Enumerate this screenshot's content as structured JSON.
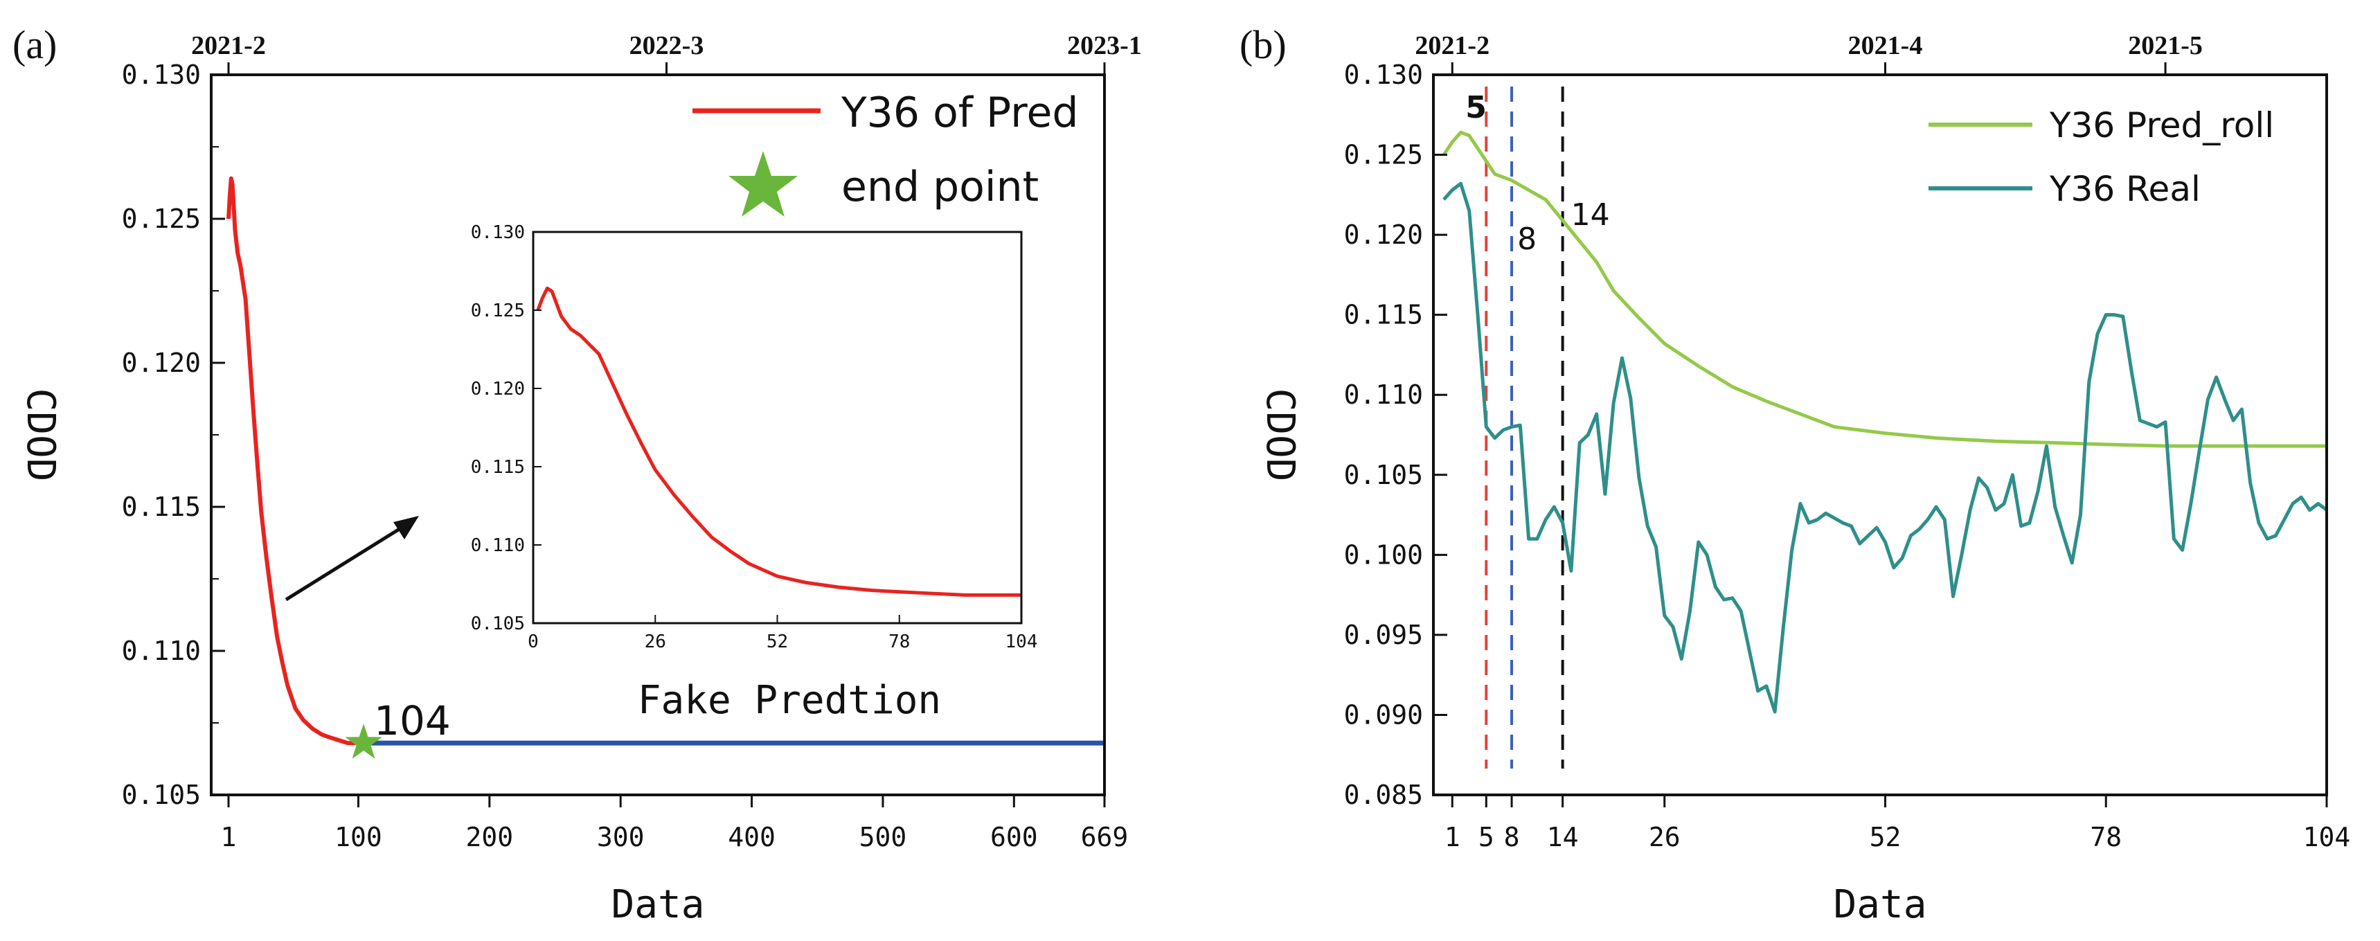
{
  "colors": {
    "pred": "#e8231f",
    "flat": "#2a52a8",
    "star": "#6ab63c",
    "roll": "#94c94a",
    "real": "#2e8f8a",
    "vline_red": "#e0453a",
    "vline_blue": "#3a61b8",
    "vline_black": "#111111"
  },
  "chart_data": [
    {
      "panel_label": "(a)",
      "type": "line",
      "xlabel": "Data",
      "ylabel": "CDOD",
      "xlim": [
        1,
        669
      ],
      "ylim": [
        0.105,
        0.13
      ],
      "x_ticks": [
        1,
        100,
        200,
        300,
        400,
        500,
        600,
        669
      ],
      "y_ticks": [
        "0.105",
        "0.110",
        "0.115",
        "0.120",
        "0.125",
        "0.130"
      ],
      "y_tick_values": [
        0.105,
        0.11,
        0.115,
        0.12,
        0.125,
        0.13
      ],
      "top_ticks": [
        {
          "x": 1,
          "label": "2021-2"
        },
        {
          "x": 335,
          "label": "2022-3"
        },
        {
          "x": 669,
          "label": "2023-1"
        }
      ],
      "legend": [
        {
          "label": "Y36 of Pred",
          "kind": "line"
        },
        {
          "label": "end point",
          "kind": "star"
        }
      ],
      "end_point": {
        "x": 104,
        "y": 0.1068,
        "label": "104"
      },
      "series": [
        {
          "name": "Y36 of Pred",
          "color_key": "pred",
          "x": [
            1,
            2,
            3,
            4,
            5,
            6,
            8,
            10,
            12,
            14,
            16,
            18,
            20,
            23,
            26,
            30,
            34,
            38,
            42,
            46,
            52,
            58,
            65,
            72,
            78,
            85,
            92,
            98,
            104
          ],
          "y": [
            0.125,
            0.1258,
            0.1264,
            0.1262,
            0.1254,
            0.1246,
            0.1238,
            0.1234,
            0.1228,
            0.1222,
            0.1209,
            0.1196,
            0.1183,
            0.1165,
            0.1148,
            0.1132,
            0.1118,
            0.1105,
            0.1096,
            0.1088,
            0.108,
            0.1076,
            0.1073,
            0.1071,
            0.107,
            0.1069,
            0.1068,
            0.1068,
            0.1068
          ]
        },
        {
          "name": "flat",
          "color_key": "flat",
          "x": [
            104,
            669
          ],
          "y": [
            0.1068,
            0.1068
          ]
        }
      ]
    },
    {
      "title": "Fake Predtion",
      "type": "line",
      "xlim": [
        0,
        104
      ],
      "ylim": [
        0.105,
        0.13
      ],
      "x_ticks": [
        0,
        26,
        52,
        78,
        104
      ],
      "y_ticks": [
        "0.105",
        "0.110",
        "0.115",
        "0.120",
        "0.125",
        "0.130"
      ],
      "y_tick_values": [
        0.105,
        0.11,
        0.115,
        0.12,
        0.125,
        0.13
      ],
      "series": [
        {
          "name": "Y36 of Pred",
          "color_key": "pred",
          "x": [
            1,
            2,
            3,
            4,
            5,
            6,
            8,
            10,
            12,
            14,
            16,
            18,
            20,
            23,
            26,
            30,
            34,
            38,
            42,
            46,
            52,
            58,
            65,
            72,
            78,
            85,
            92,
            98,
            104
          ],
          "y": [
            0.125,
            0.1258,
            0.1264,
            0.1262,
            0.1254,
            0.1246,
            0.1238,
            0.1234,
            0.1228,
            0.1222,
            0.1209,
            0.1196,
            0.1183,
            0.1165,
            0.1148,
            0.1132,
            0.1118,
            0.1105,
            0.1096,
            0.1088,
            0.108,
            0.1076,
            0.1073,
            0.1071,
            0.107,
            0.1069,
            0.1068,
            0.1068,
            0.1068
          ]
        }
      ]
    },
    {
      "panel_label": "(b)",
      "type": "line",
      "xlabel": "Data",
      "ylabel": "CDOD",
      "xlim": [
        0,
        104
      ],
      "ylim": [
        0.085,
        0.13
      ],
      "x_ticks": [
        1,
        5,
        8,
        14,
        26,
        52,
        78,
        104
      ],
      "y_ticks": [
        "0.085",
        "0.090",
        "0.095",
        "0.100",
        "0.105",
        "0.110",
        "0.115",
        "0.120",
        "0.125",
        "0.130"
      ],
      "y_tick_values": [
        0.085,
        0.09,
        0.095,
        0.1,
        0.105,
        0.11,
        0.115,
        0.12,
        0.125,
        0.13
      ],
      "top_ticks": [
        {
          "x": 1,
          "label": "2021-2"
        },
        {
          "x": 52,
          "label": "2021-4"
        },
        {
          "x": 85,
          "label": "2021-5"
        }
      ],
      "legend": [
        {
          "label": "Y36 Pred_roll",
          "color_key": "roll"
        },
        {
          "label": "Y36 Real",
          "color_key": "real"
        }
      ],
      "vlines": [
        {
          "x": 5,
          "label": "5",
          "color_key": "vline_red"
        },
        {
          "x": 8,
          "label": "8",
          "color_key": "vline_blue"
        },
        {
          "x": 14,
          "label": "14",
          "color_key": "vline_black"
        }
      ],
      "series": [
        {
          "name": "Y36 Pred_roll",
          "color_key": "roll",
          "x": [
            0,
            1,
            2,
            3,
            4,
            5,
            6,
            8,
            10,
            12,
            14,
            16,
            18,
            20,
            23,
            26,
            30,
            34,
            38,
            42,
            46,
            52,
            58,
            65,
            72,
            78,
            85,
            92,
            98,
            104
          ],
          "y": [
            0.125,
            0.1258,
            0.1264,
            0.1262,
            0.1254,
            0.1246,
            0.1238,
            0.1234,
            0.1228,
            0.1222,
            0.1209,
            0.1196,
            0.1183,
            0.1165,
            0.1148,
            0.1132,
            0.1118,
            0.1105,
            0.1096,
            0.1088,
            0.108,
            0.1076,
            0.1073,
            0.1071,
            0.107,
            0.1069,
            0.1068,
            0.1068,
            0.1068,
            0.1068
          ]
        },
        {
          "name": "Y36 Real",
          "color_key": "real",
          "x": [
            0,
            1,
            2,
            3,
            4,
            5,
            6,
            7,
            8,
            9,
            10,
            11,
            12,
            13,
            14,
            15,
            16,
            17,
            18,
            19,
            20,
            21,
            22,
            23,
            24,
            25,
            26,
            27,
            28,
            29,
            30,
            31,
            32,
            33,
            34,
            35,
            36,
            37,
            38,
            39,
            40,
            41,
            42,
            43,
            44,
            45,
            46,
            47,
            48,
            49,
            50,
            51,
            52,
            53,
            54,
            55,
            56,
            57,
            58,
            59,
            60,
            61,
            62,
            63,
            64,
            65,
            66,
            67,
            68,
            69,
            70,
            71,
            72,
            73,
            74,
            75,
            76,
            77,
            78,
            79,
            80,
            81,
            82,
            83,
            84,
            85,
            86,
            87,
            88,
            89,
            90,
            91,
            92,
            93,
            94,
            95,
            96,
            97,
            98,
            99,
            100,
            101,
            102,
            103,
            104
          ],
          "y": [
            0.1222,
            0.1228,
            0.1232,
            0.1215,
            0.115,
            0.108,
            0.1073,
            0.1078,
            0.108,
            0.1081,
            0.101,
            0.101,
            0.1022,
            0.103,
            0.102,
            0.099,
            0.107,
            0.1075,
            0.1088,
            0.1038,
            0.1095,
            0.1123,
            0.1098,
            0.1048,
            0.1018,
            0.1005,
            0.0962,
            0.0955,
            0.0935,
            0.0965,
            0.1008,
            0.1,
            0.098,
            0.0972,
            0.0973,
            0.0965,
            0.094,
            0.0915,
            0.0918,
            0.0902,
            0.0955,
            0.1003,
            0.1032,
            0.102,
            0.1022,
            0.1026,
            0.1023,
            0.102,
            0.1018,
            0.1007,
            0.1012,
            0.1017,
            0.1008,
            0.0992,
            0.0998,
            0.1012,
            0.1016,
            0.1022,
            0.103,
            0.1022,
            0.0974,
            0.1,
            0.1028,
            0.1048,
            0.1042,
            0.1028,
            0.1032,
            0.105,
            0.1018,
            0.102,
            0.104,
            0.1068,
            0.103,
            0.1012,
            0.0995,
            0.1025,
            0.1108,
            0.1138,
            0.115,
            0.115,
            0.1149,
            0.1115,
            0.1084,
            0.1082,
            0.108,
            0.1083,
            0.101,
            0.1003,
            0.1032,
            0.1065,
            0.1097,
            0.1111,
            0.1097,
            0.1084,
            0.1091,
            0.1045,
            0.102,
            0.101,
            0.1012,
            0.1022,
            0.1032,
            0.1036,
            0.1028,
            0.1032,
            0.1028
          ]
        }
      ]
    }
  ]
}
